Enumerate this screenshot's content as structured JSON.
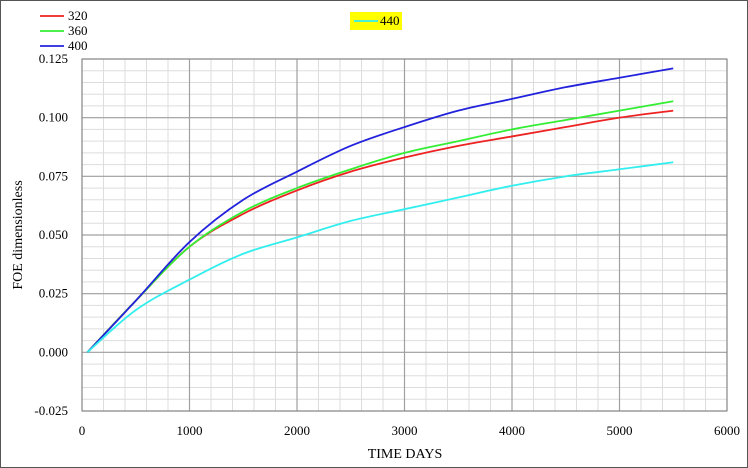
{
  "chart_data": {
    "type": "line",
    "xlabel": "TIME DAYS",
    "ylabel": "FOE dimensionless",
    "xlim": [
      0,
      6000
    ],
    "ylim": [
      -0.025,
      0.125
    ],
    "xticks": [
      0,
      1000,
      2000,
      3000,
      4000,
      5000,
      6000
    ],
    "yticks": [
      -0.025,
      0.0,
      0.025,
      0.05,
      0.075,
      0.1,
      0.125
    ],
    "xtick_labels": [
      "0",
      "1000",
      "2000",
      "3000",
      "4000",
      "5000",
      "6000"
    ],
    "ytick_labels": [
      "-0.025",
      "0.000",
      "0.025",
      "0.050",
      "0.075",
      "0.100",
      "0.125"
    ],
    "grid": true,
    "legend_position": "top-left",
    "highlighted_legend_color": "#ffff00",
    "series": [
      {
        "name": "320",
        "color": "#ee2222",
        "x": [
          50,
          500,
          1000,
          1500,
          2000,
          2500,
          3000,
          3500,
          4000,
          4500,
          5000,
          5500
        ],
        "y": [
          0.0,
          0.022,
          0.045,
          0.059,
          0.069,
          0.077,
          0.083,
          0.088,
          0.092,
          0.096,
          0.1,
          0.103
        ]
      },
      {
        "name": "360",
        "color": "#33ee33",
        "x": [
          50,
          500,
          1000,
          1500,
          2000,
          2500,
          3000,
          3500,
          4000,
          4500,
          5000,
          5500
        ],
        "y": [
          0.0,
          0.022,
          0.045,
          0.06,
          0.07,
          0.078,
          0.085,
          0.09,
          0.095,
          0.099,
          0.103,
          0.107
        ]
      },
      {
        "name": "400",
        "color": "#2222dd",
        "x": [
          50,
          500,
          1000,
          1500,
          2000,
          2500,
          3000,
          3500,
          4000,
          4500,
          5000,
          5500
        ],
        "y": [
          0.0,
          0.022,
          0.047,
          0.065,
          0.077,
          0.088,
          0.096,
          0.103,
          0.108,
          0.113,
          0.117,
          0.121
        ]
      },
      {
        "name": "440",
        "color": "#33eeee",
        "x": [
          50,
          500,
          1000,
          1500,
          2000,
          2500,
          3000,
          3500,
          4000,
          4500,
          5000,
          5500
        ],
        "y": [
          0.0,
          0.018,
          0.031,
          0.042,
          0.049,
          0.056,
          0.061,
          0.066,
          0.071,
          0.075,
          0.078,
          0.081
        ]
      }
    ]
  }
}
